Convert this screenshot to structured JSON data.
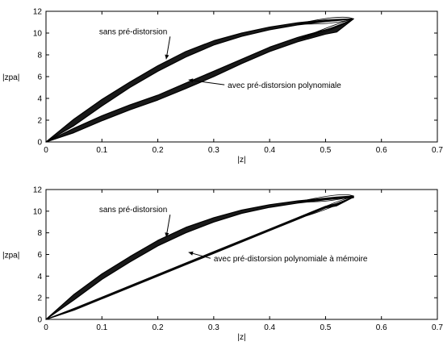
{
  "chart_data": [
    {
      "type": "line",
      "title": "",
      "xlabel": "|z|",
      "ylabel": "|zpa|",
      "xlim": [
        0,
        0.7
      ],
      "ylim": [
        0,
        12
      ],
      "xticks": [
        "0",
        "0.1",
        "0.2",
        "0.3",
        "0.4",
        "0.5",
        "0.6",
        "0.7"
      ],
      "yticks": [
        "0",
        "2",
        "4",
        "6",
        "8",
        "10",
        "12"
      ],
      "grid": false,
      "series": [
        {
          "color": "#000000",
          "x": [
            0,
            0.05,
            0.1,
            0.15,
            0.2,
            0.25,
            0.3,
            0.35,
            0.4,
            0.45,
            0.5,
            0.52,
            0.55
          ],
          "upper": [
            0,
            2.1,
            3.9,
            5.5,
            7.0,
            8.3,
            9.3,
            10.0,
            10.55,
            10.95,
            11.2,
            11.25,
            11.3
          ],
          "lower": [
            0,
            1.5,
            3.3,
            5.0,
            6.5,
            7.8,
            8.9,
            9.7,
            10.3,
            10.75,
            11.05,
            11.15,
            11.3
          ]
        },
        {
          "color": "#000000",
          "x": [
            0,
            0.05,
            0.1,
            0.15,
            0.2,
            0.25,
            0.3,
            0.35,
            0.4,
            0.45,
            0.5,
            0.52,
            0.55
          ],
          "upper": [
            0,
            1.25,
            2.4,
            3.4,
            4.3,
            5.4,
            6.5,
            7.6,
            8.7,
            9.6,
            10.3,
            10.6,
            11.3
          ],
          "lower": [
            0,
            0.85,
            1.95,
            2.95,
            3.85,
            4.9,
            6.0,
            7.2,
            8.3,
            9.2,
            9.9,
            10.1,
            11.3
          ]
        }
      ],
      "annotations": [
        {
          "text": "sans pré-distorsion",
          "x": 0.095,
          "y": 9.9,
          "arrow_to": [
            0.215,
            7.6
          ]
        },
        {
          "text": "avec pré-distorsion polynomiale",
          "x": 0.325,
          "y": 4.95,
          "arrow_to": [
            0.255,
            5.7
          ]
        }
      ]
    },
    {
      "type": "line",
      "title": "",
      "xlabel": "|z|",
      "ylabel": "|zpa|",
      "xlim": [
        0,
        0.7
      ],
      "ylim": [
        0,
        12
      ],
      "xticks": [
        "0",
        "0.1",
        "0.2",
        "0.3",
        "0.4",
        "0.5",
        "0.6",
        "0.7"
      ],
      "yticks": [
        "0",
        "2",
        "4",
        "6",
        "8",
        "10",
        "12"
      ],
      "grid": false,
      "series": [
        {
          "color": "#000000",
          "x": [
            0,
            0.05,
            0.1,
            0.15,
            0.2,
            0.25,
            0.3,
            0.35,
            0.4,
            0.45,
            0.5,
            0.52,
            0.55
          ],
          "upper": [
            0,
            2.3,
            4.2,
            5.8,
            7.3,
            8.5,
            9.4,
            10.1,
            10.6,
            10.95,
            11.2,
            11.3,
            11.4
          ],
          "lower": [
            0,
            1.8,
            3.7,
            5.3,
            6.8,
            8.0,
            9.0,
            9.8,
            10.35,
            10.75,
            11.05,
            11.15,
            11.25
          ]
        },
        {
          "color": "#000000",
          "x": [
            0,
            0.05,
            0.1,
            0.15,
            0.2,
            0.25,
            0.3,
            0.35,
            0.4,
            0.45,
            0.5,
            0.52,
            0.55
          ],
          "upper": [
            0,
            1.0,
            2.05,
            3.1,
            4.15,
            5.2,
            6.25,
            7.3,
            8.35,
            9.4,
            10.45,
            10.7,
            11.3
          ],
          "lower": [
            0,
            0.85,
            1.9,
            2.95,
            4.0,
            5.05,
            6.1,
            7.15,
            8.2,
            9.25,
            10.3,
            10.5,
            11.3
          ]
        }
      ],
      "annotations": [
        {
          "text": "sans pré-distorsion",
          "x": 0.095,
          "y": 9.9,
          "arrow_to": [
            0.215,
            7.6
          ]
        },
        {
          "text": "avec pré-distorsion polynomiale à mémoire",
          "x": 0.3,
          "y": 5.35,
          "arrow_to": [
            0.255,
            6.2
          ]
        }
      ]
    }
  ]
}
